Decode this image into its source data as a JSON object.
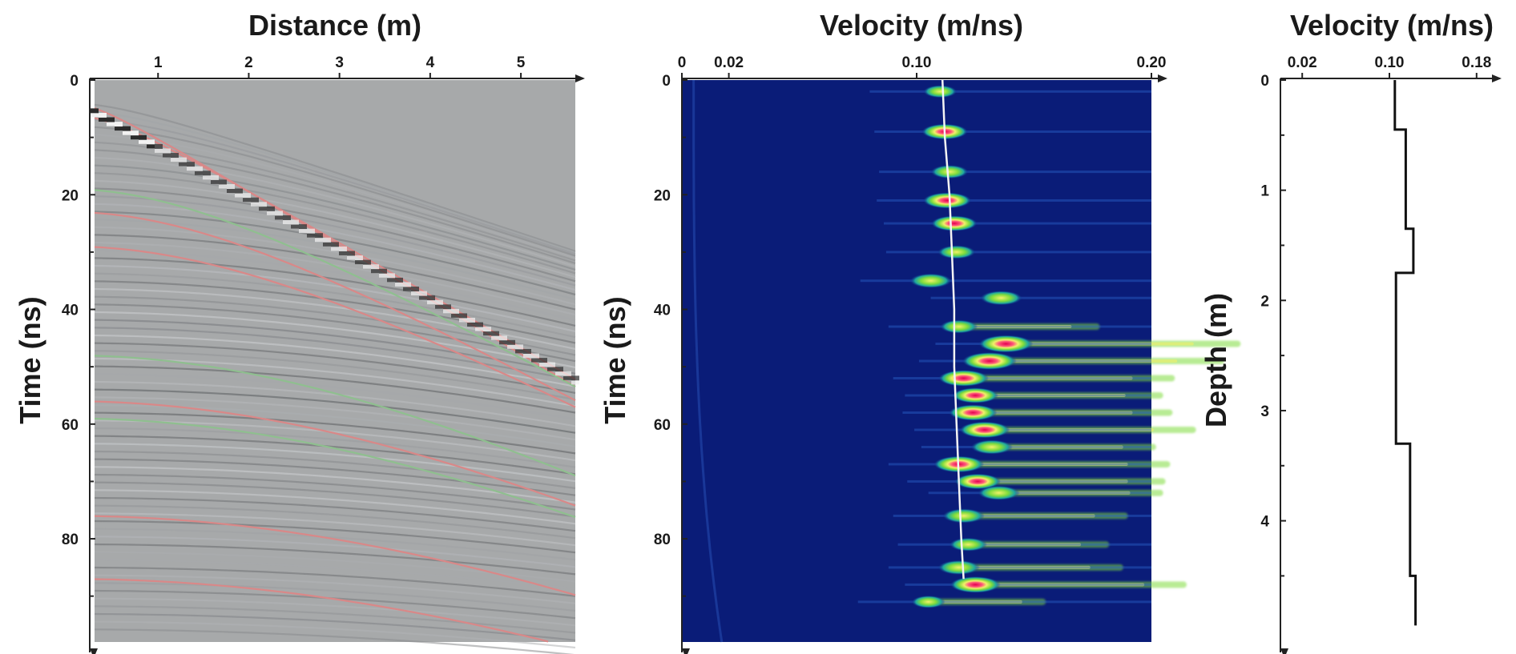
{
  "chart_data": [
    {
      "id": "cmp-gather",
      "type": "heatmap",
      "title": "",
      "xlabel": "Distance (m)",
      "ylabel": "Time (ns)",
      "xlim": [
        0.3,
        5.6
      ],
      "ylim": [
        0,
        98
      ],
      "x_ticks": [
        1,
        2,
        3,
        4,
        5
      ],
      "y_ticks": [
        0,
        20,
        40,
        60,
        80
      ],
      "description_reflections": [
        {
          "color": "#d98888",
          "t0": 4,
          "v": 0.105
        },
        {
          "color": "#d98888",
          "t0": 6,
          "v": 0.108
        },
        {
          "color": "#8fbf8f",
          "t0": 19,
          "v": 0.112
        },
        {
          "color": "#d98888",
          "t0": 23,
          "v": 0.11
        },
        {
          "color": "#d98888",
          "t0": 29,
          "v": 0.114
        },
        {
          "color": "#8fbf8f",
          "t0": 48,
          "v": 0.113
        },
        {
          "color": "#d98888",
          "t0": 56,
          "v": 0.115
        },
        {
          "color": "#8fbf8f",
          "t0": 59,
          "v": 0.116
        },
        {
          "color": "#d98888",
          "t0": 76,
          "v": 0.117
        },
        {
          "color": "#d98888",
          "t0": 87,
          "v": 0.118
        }
      ]
    },
    {
      "id": "semblance",
      "type": "heatmap",
      "title": "",
      "xlabel": "Velocity (m/ns)",
      "ylabel": "Time (ns)",
      "xlim": [
        0,
        0.2
      ],
      "ylim": [
        0,
        98
      ],
      "x_ticks": [
        0,
        0.02,
        0.1,
        0.2
      ],
      "x_tick_labels": [
        "0",
        "0.02",
        "0.10",
        "0.20"
      ],
      "y_ticks": [
        0,
        20,
        40,
        60,
        80
      ],
      "picked_velocity": {
        "t": [
          0,
          10,
          20,
          30,
          40,
          50,
          60,
          70,
          80,
          87
        ],
        "v": [
          0.111,
          0.112,
          0.114,
          0.115,
          0.116,
          0.116,
          0.117,
          0.118,
          0.119,
          0.12
        ]
      },
      "semblance_peaks": [
        {
          "t": 2,
          "v": 0.11,
          "s": 0.5
        },
        {
          "t": 9,
          "v": 0.112,
          "s": 0.8
        },
        {
          "t": 16,
          "v": 0.114,
          "s": 0.6
        },
        {
          "t": 21,
          "v": 0.113,
          "s": 0.85
        },
        {
          "t": 25,
          "v": 0.116,
          "s": 0.8
        },
        {
          "t": 30,
          "v": 0.117,
          "s": 0.6
        },
        {
          "t": 35,
          "v": 0.106,
          "s": 0.7
        },
        {
          "t": 38,
          "v": 0.136,
          "s": 0.7
        },
        {
          "t": 43,
          "v": 0.118,
          "s": 0.6
        },
        {
          "t": 46,
          "v": 0.138,
          "s": 1.0
        },
        {
          "t": 49,
          "v": 0.131,
          "s": 1.0
        },
        {
          "t": 52,
          "v": 0.12,
          "s": 0.9
        },
        {
          "t": 55,
          "v": 0.125,
          "s": 0.8
        },
        {
          "t": 58,
          "v": 0.124,
          "s": 0.85
        },
        {
          "t": 61,
          "v": 0.129,
          "s": 0.9
        },
        {
          "t": 64,
          "v": 0.132,
          "s": 0.7
        },
        {
          "t": 67,
          "v": 0.118,
          "s": 0.9
        },
        {
          "t": 70,
          "v": 0.126,
          "s": 0.8
        },
        {
          "t": 72,
          "v": 0.135,
          "s": 0.7
        },
        {
          "t": 76,
          "v": 0.12,
          "s": 0.7
        },
        {
          "t": 81,
          "v": 0.122,
          "s": 0.6
        },
        {
          "t": 85,
          "v": 0.118,
          "s": 0.7
        },
        {
          "t": 88,
          "v": 0.125,
          "s": 0.9
        },
        {
          "t": 91,
          "v": 0.105,
          "s": 0.5
        }
      ]
    },
    {
      "id": "velocity-depth",
      "type": "line",
      "title": "",
      "xlabel": "Velocity (m/ns)",
      "ylabel": "Depth (m)",
      "xlim": [
        0,
        0.2
      ],
      "ylim": [
        0,
        5.1
      ],
      "x_ticks": [
        0.02,
        0.1,
        0.18
      ],
      "x_tick_labels": [
        "0.02",
        "0.10",
        "0.18"
      ],
      "y_ticks": [
        0,
        1,
        2,
        3,
        4
      ],
      "series": [
        {
          "step": true,
          "depth_intervals": [
            {
              "top": 0,
              "bottom": 0.45,
              "v": 0.105
            },
            {
              "top": 0.45,
              "bottom": 1.35,
              "v": 0.115
            },
            {
              "top": 1.35,
              "bottom": 1.75,
              "v": 0.122
            },
            {
              "top": 1.75,
              "bottom": 3.3,
              "v": 0.106
            },
            {
              "top": 3.3,
              "bottom": 4.5,
              "v": 0.119
            },
            {
              "top": 4.5,
              "bottom": 4.95,
              "v": 0.124
            }
          ]
        }
      ]
    }
  ]
}
